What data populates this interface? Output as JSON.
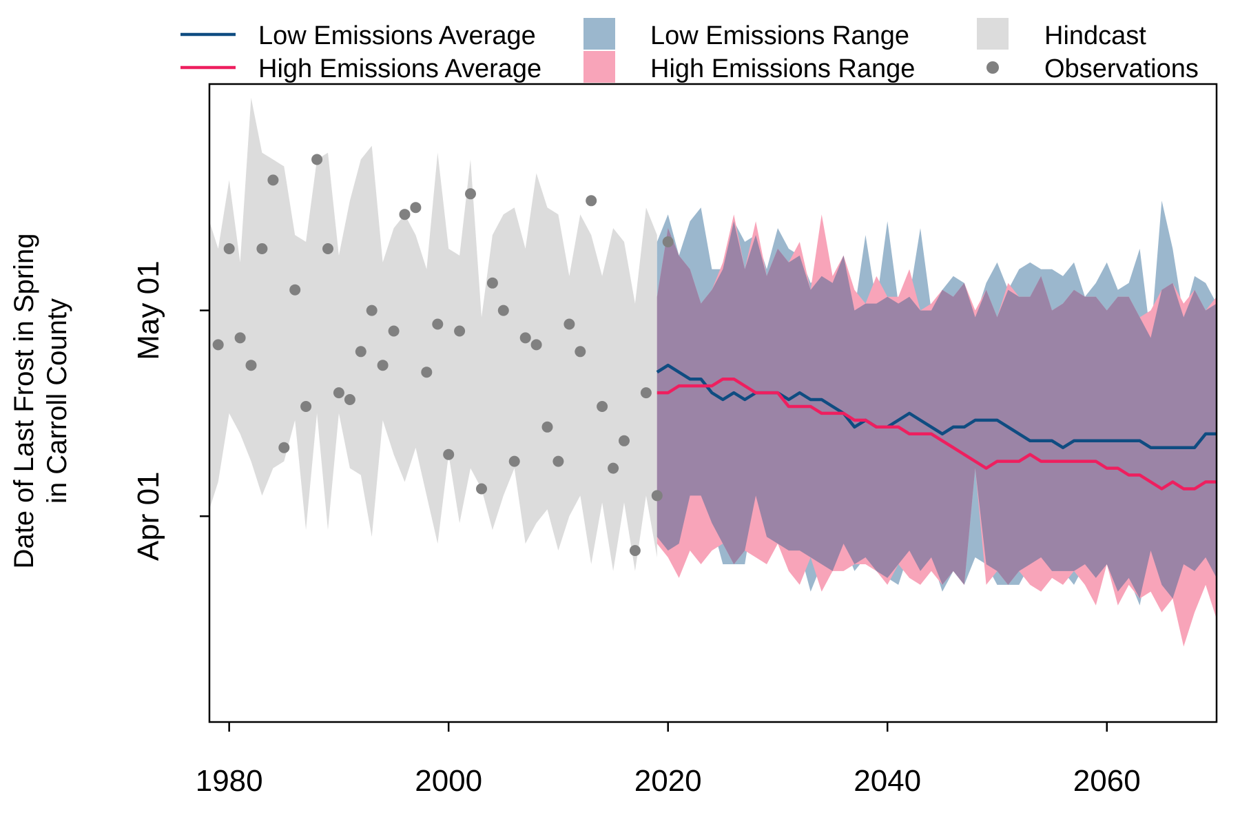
{
  "chart_data": {
    "type": "line",
    "title": "",
    "xlabel": "",
    "ylabel_lines": [
      "Date of Last Frost in Spring",
      "in Carroll County"
    ],
    "xlim": [
      1978.2,
      2070
    ],
    "ylim": [
      "Mar 02",
      "Jun 03"
    ],
    "x_ticks": [
      1980,
      2000,
      2020,
      2040,
      2060
    ],
    "x_tick_labels": [
      "1980",
      "2000",
      "2020",
      "2040",
      "2060"
    ],
    "y_ticks": [
      "Apr 01",
      "May 01"
    ],
    "y_tick_labels": [
      "Apr 01",
      "May 01"
    ],
    "grid": false,
    "legend_position": "top",
    "legend": [
      {
        "label": "Low Emissions Average",
        "kind": "line",
        "color": "#0f4c81"
      },
      {
        "label": "High Emissions Average",
        "kind": "line",
        "color": "#ee1f5f"
      },
      {
        "label": "Low Emissions Range",
        "kind": "fill",
        "color": "#9bb7cd"
      },
      {
        "label": "High Emissions Range",
        "kind": "fill",
        "color": "#f8a4b9"
      },
      {
        "label": "Hindcast",
        "kind": "fill",
        "color": "#dcdcdc"
      },
      {
        "label": "Observations",
        "kind": "point",
        "color": "#808080"
      }
    ],
    "colors": {
      "low_avg": "#0f4c81",
      "high_avg": "#ee1f5f",
      "low_range": "#9bb7cd",
      "high_range": "#f8a4b9",
      "overlap": "#9b84a6",
      "hindcast": "#dcdcdc",
      "observations": "#808080"
    },
    "hindcast_range": {
      "x": [
        1978,
        1979,
        1980,
        1981,
        1982,
        1983,
        1984,
        1985,
        1986,
        1987,
        1988,
        1989,
        1990,
        1991,
        1992,
        1993,
        1994,
        1995,
        1996,
        1997,
        1998,
        1999,
        2000,
        2001,
        2002,
        2003,
        2004,
        2005,
        2006,
        2007,
        2008,
        2009,
        2010,
        2011,
        2012,
        2013,
        2014,
        2015,
        2016,
        2017,
        2018,
        2019
      ],
      "high": [
        "May 15",
        "May 10",
        "May 20",
        "May 08",
        "Jun 01",
        "May 24",
        "May 23",
        "May 22",
        "May 12",
        "May 11",
        "May 23",
        "May 24",
        "May 09",
        "May 17",
        "May 23",
        "May 25",
        "May 08",
        "May 13",
        "May 15",
        "May 12",
        "May 07",
        "May 24",
        "May 10",
        "May 09",
        "May 23",
        "Apr 30",
        "May 12",
        "May 15",
        "May 16",
        "May 10",
        "May 21",
        "May 16",
        "May 15",
        "May 06",
        "May 15",
        "May 12",
        "May 06",
        "May 13",
        "May 11",
        "May 02",
        "May 16",
        "May 12"
      ],
      "low": [
        "Apr 01",
        "Apr 06",
        "Apr 16",
        "Apr 13",
        "Apr 09",
        "Apr 04",
        "Apr 08",
        "Apr 09",
        "Apr 15",
        "Mar 30",
        "Apr 16",
        "Mar 30",
        "Apr 16",
        "Apr 08",
        "Apr 07",
        "Mar 29",
        "Apr 15",
        "Apr 10",
        "Apr 06",
        "Apr 11",
        "Apr 04",
        "Mar 28",
        "Apr 10",
        "Mar 31",
        "Apr 08",
        "Apr 05",
        "Mar 30",
        "Apr 04",
        "Apr 08",
        "Mar 28",
        "Mar 31",
        "Apr 02",
        "Mar 27",
        "Apr 01",
        "Apr 04",
        "Mar 25",
        "Apr 03",
        "Mar 24",
        "Apr 03",
        "Mar 24",
        "Apr 04",
        "Mar 26"
      ]
    },
    "observations": {
      "x": [
        1979,
        1980,
        1981,
        1982,
        1983,
        1984,
        1985,
        1986,
        1987,
        1988,
        1989,
        1990,
        1991,
        1992,
        1993,
        1994,
        1995,
        1996,
        1997,
        1998,
        1999,
        2000,
        2001,
        2002,
        2003,
        2004,
        2005,
        2006,
        2007,
        2008,
        2009,
        2010,
        2011,
        2012,
        2013,
        2014,
        2015,
        2016,
        2017,
        2018,
        2019,
        2020
      ],
      "y": [
        "Apr 26",
        "May 10",
        "Apr 27",
        "Apr 23",
        "May 10",
        "May 20",
        "Apr 11",
        "May 04",
        "Apr 17",
        "May 23",
        "May 10",
        "Apr 19",
        "Apr 18",
        "Apr 25",
        "May 01",
        "Apr 23",
        "Apr 28",
        "May 15",
        "May 16",
        "Apr 22",
        "Apr 29",
        "Apr 10",
        "Apr 28",
        "May 18",
        "Apr 05",
        "May 05",
        "May 01",
        "Apr 09",
        "Apr 27",
        "Apr 26",
        "Apr 14",
        "Apr 09",
        "Apr 29",
        "Apr 25",
        "May 17",
        "Apr 17",
        "Apr 08",
        "Apr 12",
        "Mar 27",
        "Apr 19",
        "Apr 04",
        "May 11"
      ]
    },
    "series": [
      {
        "name": "Low Emissions Average",
        "x": [
          2019,
          2020,
          2021,
          2022,
          2023,
          2024,
          2025,
          2026,
          2027,
          2028,
          2029,
          2030,
          2031,
          2032,
          2033,
          2034,
          2035,
          2036,
          2037,
          2038,
          2039,
          2040,
          2041,
          2042,
          2043,
          2044,
          2045,
          2046,
          2047,
          2048,
          2049,
          2050,
          2051,
          2052,
          2053,
          2054,
          2055,
          2056,
          2057,
          2058,
          2059,
          2060,
          2061,
          2062,
          2063,
          2064,
          2065,
          2066,
          2067,
          2068,
          2069,
          2070
        ],
        "y": [
          "Apr 22",
          "Apr 23",
          "Apr 22",
          "Apr 21",
          "Apr 21",
          "Apr 19",
          "Apr 18",
          "Apr 19",
          "Apr 18",
          "Apr 19",
          "Apr 19",
          "Apr 19",
          "Apr 18",
          "Apr 19",
          "Apr 18",
          "Apr 18",
          "Apr 17",
          "Apr 16",
          "Apr 14",
          "Apr 15",
          "Apr 14",
          "Apr 14",
          "Apr 15",
          "Apr 16",
          "Apr 15",
          "Apr 14",
          "Apr 13",
          "Apr 14",
          "Apr 14",
          "Apr 15",
          "Apr 15",
          "Apr 15",
          "Apr 14",
          "Apr 13",
          "Apr 12",
          "Apr 12",
          "Apr 12",
          "Apr 11",
          "Apr 12",
          "Apr 12",
          "Apr 12",
          "Apr 12",
          "Apr 12",
          "Apr 12",
          "Apr 12",
          "Apr 11",
          "Apr 11",
          "Apr 11",
          "Apr 11",
          "Apr 11",
          "Apr 13",
          "Apr 13"
        ]
      },
      {
        "name": "High Emissions Average",
        "x": [
          2019,
          2020,
          2021,
          2022,
          2023,
          2024,
          2025,
          2026,
          2027,
          2028,
          2029,
          2030,
          2031,
          2032,
          2033,
          2034,
          2035,
          2036,
          2037,
          2038,
          2039,
          2040,
          2041,
          2042,
          2043,
          2044,
          2045,
          2046,
          2047,
          2048,
          2049,
          2050,
          2051,
          2052,
          2053,
          2054,
          2055,
          2056,
          2057,
          2058,
          2059,
          2060,
          2061,
          2062,
          2063,
          2064,
          2065,
          2066,
          2067,
          2068,
          2069,
          2070
        ],
        "y": [
          "Apr 19",
          "Apr 19",
          "Apr 20",
          "Apr 20",
          "Apr 20",
          "Apr 20",
          "Apr 21",
          "Apr 21",
          "Apr 20",
          "Apr 19",
          "Apr 19",
          "Apr 19",
          "Apr 17",
          "Apr 17",
          "Apr 17",
          "Apr 16",
          "Apr 16",
          "Apr 16",
          "Apr 15",
          "Apr 15",
          "Apr 14",
          "Apr 14",
          "Apr 14",
          "Apr 13",
          "Apr 13",
          "Apr 13",
          "Apr 12",
          "Apr 11",
          "Apr 10",
          "Apr 09",
          "Apr 08",
          "Apr 09",
          "Apr 09",
          "Apr 09",
          "Apr 10",
          "Apr 09",
          "Apr 09",
          "Apr 09",
          "Apr 09",
          "Apr 09",
          "Apr 09",
          "Apr 08",
          "Apr 08",
          "Apr 07",
          "Apr 07",
          "Apr 06",
          "Apr 05",
          "Apr 06",
          "Apr 05",
          "Apr 05",
          "Apr 06",
          "Apr 06"
        ]
      }
    ],
    "low_range": {
      "x": [
        2019,
        2020,
        2021,
        2022,
        2023,
        2024,
        2025,
        2026,
        2027,
        2028,
        2029,
        2030,
        2031,
        2032,
        2033,
        2034,
        2035,
        2036,
        2037,
        2038,
        2039,
        2040,
        2041,
        2042,
        2043,
        2044,
        2045,
        2046,
        2047,
        2048,
        2049,
        2050,
        2051,
        2052,
        2053,
        2054,
        2055,
        2056,
        2057,
        2058,
        2059,
        2060,
        2061,
        2062,
        2063,
        2064,
        2065,
        2066,
        2067,
        2068,
        2069,
        2070
      ],
      "high": [
        "May 11",
        "May 15",
        "May 09",
        "May 14",
        "May 16",
        "May 07",
        "May 07",
        "May 14",
        "May 11",
        "May 12",
        "May 07",
        "May 13",
        "May 10",
        "May 09",
        "May 05",
        "May 06",
        "May 05",
        "May 09",
        "May 01",
        "May 12",
        "May 02",
        "May 14",
        "May 02",
        "May 03",
        "May 13",
        "May 01",
        "May 04",
        "May 06",
        "May 05",
        "Apr 30",
        "May 05",
        "May 08",
        "May 04",
        "May 07",
        "May 08",
        "May 07",
        "May 07",
        "May 06",
        "May 08",
        "May 03",
        "May 05",
        "May 08",
        "May 04",
        "May 05",
        "May 10",
        "Apr 27",
        "May 17",
        "May 10",
        "Apr 30",
        "May 06",
        "May 05",
        "May 02"
      ],
      "low": [
        "Mar 29",
        "Mar 27",
        "Mar 28",
        "Apr 04",
        "Apr 04",
        "Mar 31",
        "Mar 25",
        "Mar 25",
        "Mar 25",
        "Apr 04",
        "Mar 29",
        "Mar 28",
        "Mar 27",
        "Mar 27",
        "Mar 21",
        "Mar 25",
        "Mar 24",
        "Mar 28",
        "Mar 24",
        "Mar 26",
        "Mar 24",
        "Mar 23",
        "Mar 22",
        "Mar 27",
        "Mar 24",
        "Mar 26",
        "Mar 21",
        "Mar 24",
        "Mar 22",
        "Mar 26",
        "Mar 25",
        "Mar 22",
        "Mar 22",
        "Mar 22",
        "Mar 25",
        "Mar 26",
        "Mar 24",
        "Mar 24",
        "Mar 22",
        "Mar 25",
        "Mar 23",
        "Mar 25",
        "Mar 21",
        "Mar 23",
        "Mar 19",
        "Mar 27",
        "Mar 22",
        "Mar 20",
        "Mar 25",
        "Mar 24",
        "Mar 26",
        "Mar 23"
      ]
    },
    "high_range": {
      "x": [
        2019,
        2020,
        2021,
        2022,
        2023,
        2024,
        2025,
        2026,
        2027,
        2028,
        2029,
        2030,
        2031,
        2032,
        2033,
        2034,
        2035,
        2036,
        2037,
        2038,
        2039,
        2040,
        2041,
        2042,
        2043,
        2044,
        2045,
        2046,
        2047,
        2048,
        2049,
        2050,
        2051,
        2052,
        2053,
        2054,
        2055,
        2056,
        2057,
        2058,
        2059,
        2060,
        2061,
        2062,
        2063,
        2064,
        2065,
        2066,
        2067,
        2068,
        2069,
        2070
      ],
      "high": [
        "May 03",
        "May 13",
        "May 09",
        "May 07",
        "May 02",
        "May 04",
        "May 08",
        "May 15",
        "May 07",
        "May 14",
        "May 06",
        "May 10",
        "May 08",
        "May 11",
        "May 04",
        "May 15",
        "May 06",
        "May 09",
        "May 04",
        "May 02",
        "May 06",
        "May 03",
        "May 03",
        "May 07",
        "May 01",
        "May 02",
        "May 04",
        "May 03",
        "May 05",
        "May 01",
        "May 04",
        "Apr 30",
        "May 05",
        "May 03",
        "May 03",
        "May 06",
        "May 01",
        "May 02",
        "May 04",
        "May 03",
        "May 03",
        "May 01",
        "May 03",
        "May 03",
        "Apr 30",
        "May 01",
        "May 04",
        "May 05",
        "May 02",
        "May 04",
        "May 01",
        "May 03"
      ],
      "low": [
        "Mar 28",
        "Mar 26",
        "Mar 23",
        "Mar 27",
        "Mar 25",
        "Mar 27",
        "Mar 28",
        "Mar 25",
        "Mar 27",
        "Mar 26",
        "Mar 25",
        "Mar 28",
        "Mar 24",
        "Mar 22",
        "Mar 26",
        "Mar 21",
        "Mar 24",
        "Mar 24",
        "Mar 25",
        "Mar 25",
        "Mar 24",
        "Mar 22",
        "Mar 25",
        "Mar 23",
        "Mar 22",
        "Mar 24",
        "Mar 22",
        "Mar 24",
        "Mar 22",
        "Apr 08",
        "Mar 22",
        "Mar 24",
        "Mar 22",
        "Mar 24",
        "Mar 22",
        "Mar 21",
        "Mar 23",
        "Mar 22",
        "Mar 24",
        "Mar 22",
        "Mar 19",
        "Mar 25",
        "Mar 19",
        "Mar 22",
        "Mar 20",
        "Mar 21",
        "Mar 18",
        "Mar 20",
        "Mar 13",
        "Mar 18",
        "Mar 22",
        "Mar 17"
      ]
    }
  }
}
